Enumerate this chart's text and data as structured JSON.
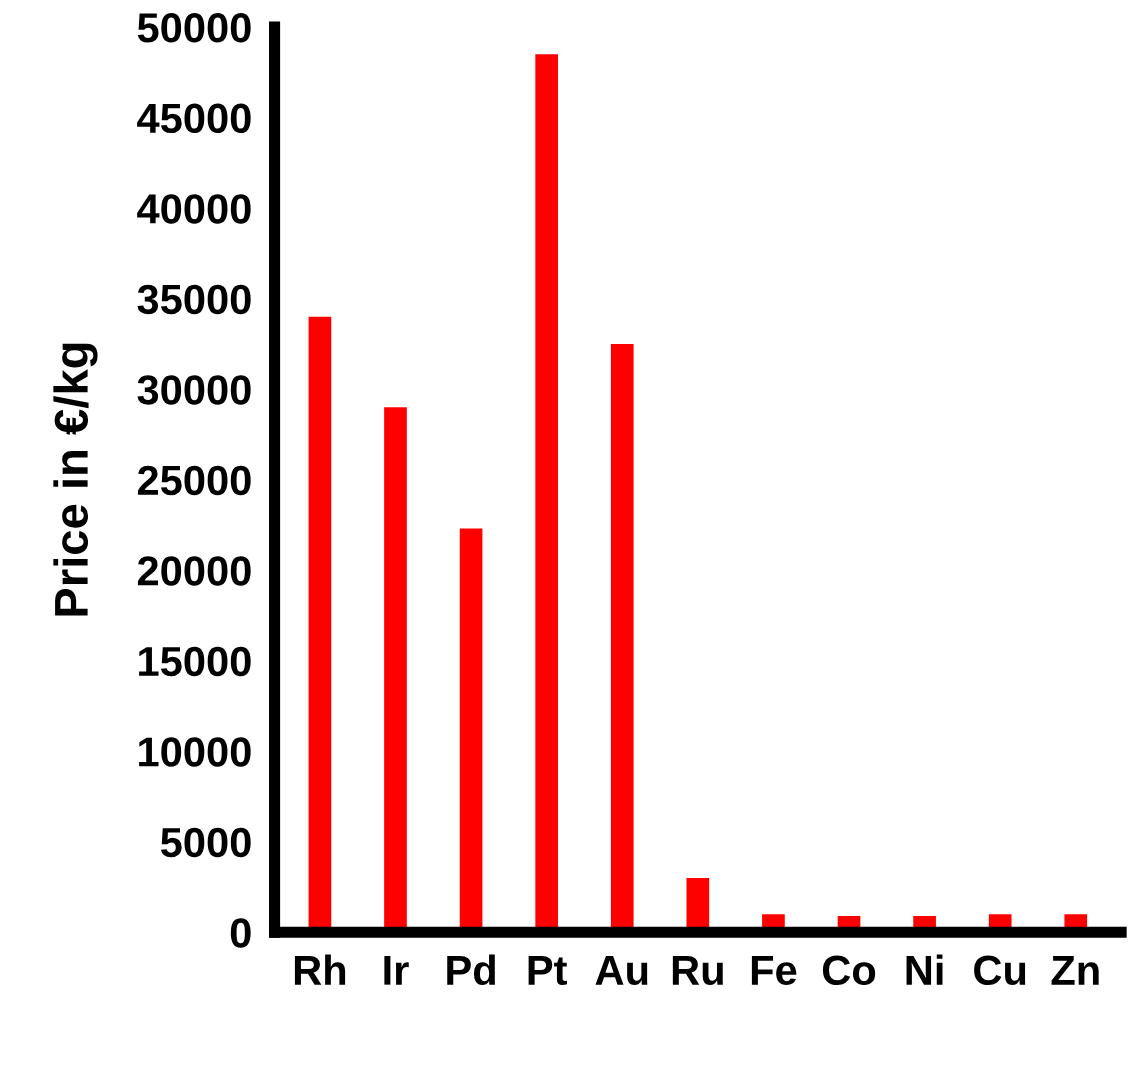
{
  "chart_data": {
    "type": "bar",
    "ylabel": "Price in €/kg",
    "categories": [
      "Rh",
      "Ir",
      "Pd",
      "Pt",
      "Au",
      "Ru",
      "Fe",
      "Co",
      "Ni",
      "Cu",
      "Zn"
    ],
    "values": [
      34000,
      29000,
      22300,
      48500,
      32500,
      3000,
      1000,
      900,
      900,
      1000,
      1000
    ],
    "color": "#ff0000",
    "ylim": [
      0,
      50000
    ],
    "yticks": [
      0,
      5000,
      10000,
      15000,
      20000,
      25000,
      30000,
      35000,
      40000,
      45000,
      50000
    ],
    "grid": false,
    "legend": false
  }
}
